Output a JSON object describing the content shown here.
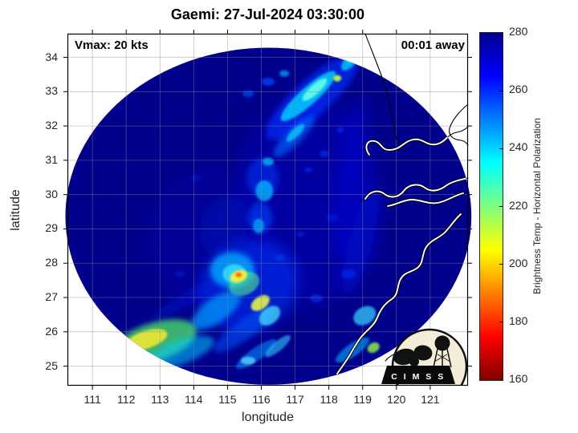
{
  "title": "Gaemi: 27-Jul-2024 03:30:00",
  "annotations": {
    "vmax": "Vmax: 20 kts",
    "time_away": "00:01 away"
  },
  "axes": {
    "xlabel": "longitude",
    "ylabel": "latitude",
    "xlim": [
      110.26,
      122.12
    ],
    "ylim": [
      24.43,
      34.69
    ],
    "xticks": [
      111,
      112,
      113,
      114,
      115,
      116,
      117,
      118,
      119,
      120,
      121
    ],
    "yticks": [
      25,
      26,
      27,
      28,
      29,
      30,
      31,
      32,
      33,
      34
    ]
  },
  "colorbar": {
    "label": "Brightness Temp - Horizontal Polarization",
    "min": 160,
    "max": 280,
    "ticks": [
      160,
      180,
      200,
      220,
      240,
      260,
      280
    ],
    "stops": [
      [
        "#00008F",
        0
      ],
      [
        "#0000FF",
        12.5
      ],
      [
        "#00FFFF",
        37.5
      ],
      [
        "#FFFF00",
        62.5
      ],
      [
        "#FF0000",
        87.5
      ],
      [
        "#800000",
        100
      ]
    ]
  },
  "logo": {
    "text": "C I M S S"
  },
  "chart_data": {
    "type": "heatmap",
    "title": "Gaemi: 27-Jul-2024 03:30:00",
    "xlabel": "longitude",
    "ylabel": "latitude",
    "xlim": [
      110.26,
      122.12
    ],
    "ylim": [
      24.43,
      34.69
    ],
    "grid": true,
    "colorbar_label": "Brightness Temp - Horizontal Polarization",
    "colorbar_range": [
      160,
      280
    ],
    "background": "#FFFFFF",
    "swath": {
      "center_lon": 116.21,
      "center_lat": 29.37,
      "rx_deg": 6.01,
      "ry_deg": 4.91,
      "color": "#00008C",
      "background_tb_k": 278
    },
    "feature_format": [
      "lon",
      "lat",
      "width_deg",
      "height_deg",
      "rotation_deg",
      "color",
      "opacity",
      "blur_level",
      "tb_k"
    ],
    "features": [
      [
        117.39,
        29.79,
        4.28,
        6.07,
        0,
        "#0000CC",
        0.3,
        2,
        272
      ],
      [
        114.54,
        28.62,
        3.8,
        4.21,
        0,
        "#0000BB",
        0.22,
        2,
        274
      ],
      [
        114.9,
        29.09,
        1.43,
        1.87,
        20,
        "#0011CC",
        0.35,
        2,
        270
      ],
      [
        118.63,
        30.49,
        0.86,
        4.67,
        8,
        "#0000E6",
        0.4,
        2,
        268
      ],
      [
        118.94,
        28.62,
        0.71,
        3.27,
        15,
        "#0011EE",
        0.4,
        2,
        268
      ],
      [
        115.61,
        27.33,
        3.09,
        2.57,
        -30,
        "#0033FF",
        0.55,
        2,
        258
      ],
      [
        114.3,
        26.28,
        2.85,
        0.47,
        -30,
        "#0022DD",
        0.4,
        1,
        266
      ],
      [
        113.83,
        26.98,
        2.38,
        0.37,
        -30,
        "#0022DD",
        0.35,
        1,
        266
      ],
      [
        115.49,
        26.05,
        2.14,
        0.56,
        -35,
        "#0055FF",
        0.55,
        1,
        258
      ],
      [
        117.87,
        31.19,
        0.29,
        0.19,
        0,
        "#0044FF",
        0.5,
        0,
        260
      ],
      [
        118.34,
        31.89,
        0.24,
        0.19,
        0,
        "#0033FF",
        0.5,
        0,
        262
      ],
      [
        117.39,
        30.72,
        0.24,
        0.16,
        0,
        "#0033FF",
        0.45,
        0,
        262
      ],
      [
        118.11,
        29.32,
        0.38,
        0.23,
        0,
        "#0022EE",
        0.45,
        0,
        264
      ],
      [
        118.58,
        27.69,
        0.43,
        0.28,
        0,
        "#0033FF",
        0.5,
        0,
        262
      ],
      [
        117.63,
        26.98,
        0.38,
        0.23,
        0,
        "#0044FF",
        0.5,
        0,
        260
      ],
      [
        114.07,
        30.49,
        0.29,
        0.19,
        0,
        "#0022DD",
        0.4,
        0,
        265
      ],
      [
        113.59,
        27.69,
        0.33,
        0.21,
        0,
        "#0022DD",
        0.4,
        0,
        265
      ],
      [
        116.56,
        28.15,
        0.29,
        0.19,
        0,
        "#0044FF",
        0.5,
        0,
        260
      ],
      [
        117.16,
        28.85,
        0.24,
        0.16,
        0,
        "#0033FF",
        0.45,
        0,
        262
      ],
      [
        117.51,
        32.83,
        3.56,
        1.05,
        -42,
        "#0033FF",
        0.65,
        1,
        258
      ],
      [
        117.39,
        32.87,
        2.14,
        0.51,
        -42,
        "#00CCFF",
        0.85,
        0,
        238
      ],
      [
        117.58,
        33.06,
        0.95,
        0.28,
        -42,
        "#66FFE6",
        0.9,
        0,
        228
      ],
      [
        118.25,
        33.39,
        0.24,
        0.19,
        0,
        "#CCFF33",
        0.9,
        0,
        212
      ],
      [
        118.63,
        33.9,
        0.71,
        0.33,
        -50,
        "#00CCFF",
        0.8,
        0,
        238
      ],
      [
        118.77,
        34.09,
        0.62,
        0.23,
        -50,
        "#33FF99",
        0.85,
        0,
        222
      ],
      [
        116.2,
        33.29,
        0.38,
        0.23,
        0,
        "#0044FF",
        0.75,
        0,
        258
      ],
      [
        116.68,
        33.53,
        0.29,
        0.19,
        0,
        "#00AAFF",
        0.7,
        0,
        246
      ],
      [
        115.61,
        32.94,
        0.33,
        0.21,
        0,
        "#0055FF",
        0.6,
        0,
        256
      ],
      [
        116.97,
        31.7,
        1.66,
        0.47,
        -45,
        "#0066FF",
        0.65,
        1,
        252
      ],
      [
        117.01,
        31.8,
        0.71,
        0.23,
        -45,
        "#00CCFF",
        0.8,
        0,
        238
      ],
      [
        116.04,
        30.49,
        0.95,
        1.17,
        0,
        "#0033EE",
        0.6,
        1,
        260
      ],
      [
        116.09,
        30.11,
        0.52,
        0.61,
        0,
        "#00BBFF",
        0.75,
        0,
        240
      ],
      [
        116.2,
        30.96,
        0.33,
        0.23,
        0,
        "#00CCFF",
        0.7,
        0,
        238
      ],
      [
        115.97,
        29.32,
        0.71,
        0.93,
        0,
        "#0044FF",
        0.6,
        1,
        258
      ],
      [
        115.92,
        29.09,
        0.33,
        0.42,
        0,
        "#00CCFF",
        0.6,
        0,
        238
      ],
      [
        115.14,
        27.8,
        1.31,
        1.05,
        0,
        "#00AAFF",
        0.8,
        1,
        244
      ],
      [
        115.21,
        27.69,
        0.71,
        0.56,
        0,
        "#33DDFF",
        0.9,
        0,
        234
      ],
      [
        115.49,
        27.4,
        0.95,
        0.65,
        -25,
        "#55EE88",
        0.6,
        0,
        222
      ],
      [
        115.33,
        27.62,
        0.52,
        0.33,
        -20,
        "#FFEE33",
        0.95,
        0,
        205
      ],
      [
        115.33,
        27.66,
        0.19,
        0.14,
        0,
        "#FF6600",
        0.95,
        0,
        192
      ],
      [
        115.97,
        26.84,
        0.62,
        0.37,
        -35,
        "#EEFF44",
        0.85,
        0,
        210
      ],
      [
        114.66,
        26.63,
        1.66,
        0.7,
        -35,
        "#00AAFF",
        0.65,
        1,
        244
      ],
      [
        116.25,
        26.47,
        0.71,
        0.47,
        -40,
        "#44DDFF",
        0.75,
        0,
        235
      ],
      [
        112.83,
        25.7,
        2.61,
        1.12,
        -18,
        "#44DD66",
        0.8,
        1,
        220
      ],
      [
        112.59,
        25.77,
        1.31,
        0.51,
        -18,
        "#EEE833",
        0.9,
        0,
        207
      ],
      [
        113.59,
        25.4,
        2.14,
        0.7,
        -20,
        "#00CCFF",
        0.55,
        1,
        238
      ],
      [
        115.85,
        25.35,
        1.43,
        0.37,
        -35,
        "#0088FF",
        0.6,
        0,
        248
      ],
      [
        116.49,
        25.58,
        0.95,
        0.28,
        -40,
        "#33CCFF",
        0.6,
        0,
        237
      ],
      [
        115.61,
        25.16,
        0.43,
        0.23,
        0,
        "#66E6FF",
        0.7,
        0,
        233
      ],
      [
        119.06,
        26.47,
        0.71,
        0.51,
        -30,
        "#33CCFF",
        0.75,
        0,
        236
      ],
      [
        119.32,
        25.54,
        0.38,
        0.28,
        -30,
        "#88EE44",
        0.85,
        0,
        218
      ],
      [
        118.7,
        25.47,
        1.19,
        0.37,
        -35,
        "#00AAFF",
        0.6,
        0,
        245
      ]
    ]
  }
}
